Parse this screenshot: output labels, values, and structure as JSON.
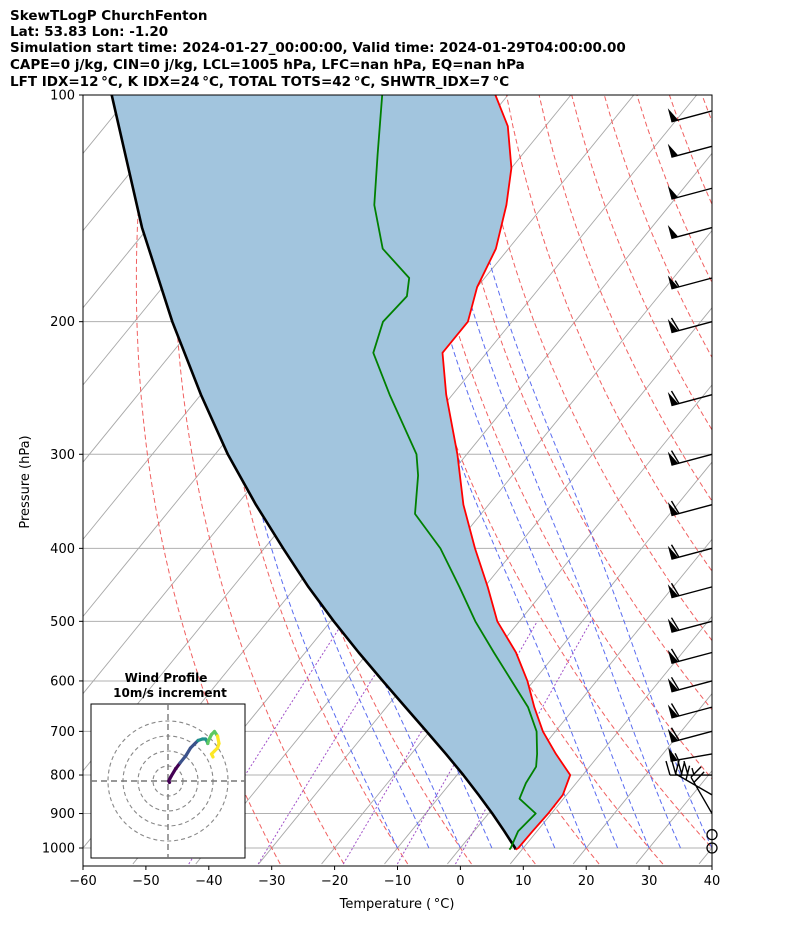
{
  "header": {
    "line1": "SkewTLogP ChurchFenton",
    "line2": "Lat: 53.83   Lon: -1.20",
    "line3": "Simulation start time: 2024-01-27_00:00:00, Valid time: 2024-01-29T04:00:00.00",
    "line4": "CAPE=0 j/kg, CIN=0 j/kg, LCL=1005 hPa, LFC=nan hPa, EQ=nan hPa",
    "line5": "LFT IDX=12 °C, K IDX=24 °C, TOTAL TOTS=42 °C, SHWTR_IDX=7 °C"
  },
  "chart_data": {
    "type": "skewt",
    "xlabel": "Temperature ( °C)",
    "ylabel": "Pressure (hPa)",
    "xlim": [
      -60,
      40
    ],
    "ylim": [
      1050,
      100
    ],
    "x_ticks": [
      -60,
      -50,
      -40,
      -30,
      -20,
      -10,
      0,
      10,
      20,
      30,
      40
    ],
    "x_tick_labels": [
      "−60",
      "−50",
      "−40",
      "−30",
      "−20",
      "−10",
      "0",
      "10",
      "20",
      "30",
      "40"
    ],
    "p_ticks": [
      100,
      200,
      300,
      400,
      500,
      600,
      700,
      800,
      900,
      1000
    ],
    "grid": true,
    "temperature": {
      "color": "#ff0000",
      "p": [
        1005,
        1000,
        950,
        900,
        850,
        800,
        750,
        700,
        650,
        600,
        550,
        500,
        450,
        400,
        350,
        300,
        250,
        220,
        200,
        180,
        160,
        140,
        125,
        110,
        100
      ],
      "t": [
        9.0,
        9.2,
        9.3,
        9.5,
        9.4,
        8.0,
        3.0,
        -2.0,
        -6.5,
        -11.0,
        -16.5,
        -23.5,
        -29.5,
        -36.5,
        -44.0,
        -51.5,
        -61.0,
        -67.0,
        -67.0,
        -70.0,
        -72.0,
        -76.0,
        -80.0,
        -86.0,
        -92.0
      ]
    },
    "dewpoint": {
      "color": "#008000",
      "p": [
        1005,
        1000,
        950,
        900,
        860,
        820,
        780,
        750,
        700,
        650,
        600,
        550,
        500,
        450,
        400,
        360,
        320,
        300,
        250,
        220,
        200,
        185,
        175,
        160,
        140,
        120,
        100
      ],
      "t": [
        8.0,
        8.0,
        7.0,
        7.5,
        3.0,
        2.0,
        1.5,
        0.0,
        -3.0,
        -7.5,
        -13.5,
        -20.0,
        -27.0,
        -34.0,
        -42.0,
        -50.5,
        -55.0,
        -58.0,
        -70.0,
        -78.0,
        -80.5,
        -80.0,
        -82.0,
        -90.0,
        -97.0,
        -103.0,
        -110.0
      ]
    },
    "parcel": {
      "color": "#000000",
      "p": [
        1005,
        1000,
        950,
        900,
        850,
        800,
        750,
        700,
        650,
        600,
        550,
        500,
        450,
        400,
        350,
        300,
        250,
        200,
        150,
        100
      ],
      "t": [
        9.0,
        8.7,
        4.8,
        0.6,
        -4.0,
        -9.0,
        -14.5,
        -20.5,
        -27.0,
        -34.0,
        -41.5,
        -49.5,
        -58.0,
        -67.0,
        -77.0,
        -88.0,
        -100.0,
        -114.0,
        -131.0,
        -153.0
      ]
    },
    "shading": {
      "between": [
        "temperature",
        "parcel"
      ],
      "color": "#a2c5de"
    },
    "wind_barbs": {
      "p": [
        1000,
        960,
        900,
        850,
        800,
        750,
        700,
        650,
        600,
        550,
        500,
        450,
        400,
        350,
        300,
        250,
        200,
        175,
        150,
        133,
        117,
        105
      ],
      "speed_kt": [
        0,
        0,
        20,
        30,
        45,
        55,
        60,
        60,
        60,
        60,
        60,
        60,
        60,
        60,
        60,
        60,
        60,
        55,
        50,
        50,
        50,
        50
      ],
      "direction_deg": [
        0,
        0,
        330,
        300,
        270,
        260,
        255,
        255,
        255,
        255,
        255,
        255,
        255,
        255,
        255,
        255,
        255,
        255,
        255,
        255,
        255,
        255
      ]
    },
    "inset": {
      "title": "Wind Profile",
      "subtitle": "10m/s increment",
      "rings_ms": [
        10,
        20,
        30,
        40
      ],
      "hodograph_u": [
        1.0,
        0.5,
        2.0,
        5.0,
        8.0,
        12.0,
        15.0,
        18.0,
        20.0,
        23.0,
        25.0,
        26.0,
        26.5,
        27.0,
        29.0,
        31.0,
        33.0,
        34.0,
        33.0,
        31.0,
        29.0,
        30.0
      ],
      "hodograph_v": [
        -1.0,
        0.0,
        3.0,
        8.0,
        12.0,
        17.0,
        22.0,
        25.0,
        27.0,
        28.0,
        28.0,
        26.5,
        25.0,
        27.0,
        31.0,
        33.0,
        30.0,
        25.0,
        22.0,
        20.0,
        18.0,
        16.0
      ],
      "colormap": [
        "#440154",
        "#3b528b",
        "#21918c",
        "#5ec962",
        "#fde725"
      ]
    }
  }
}
